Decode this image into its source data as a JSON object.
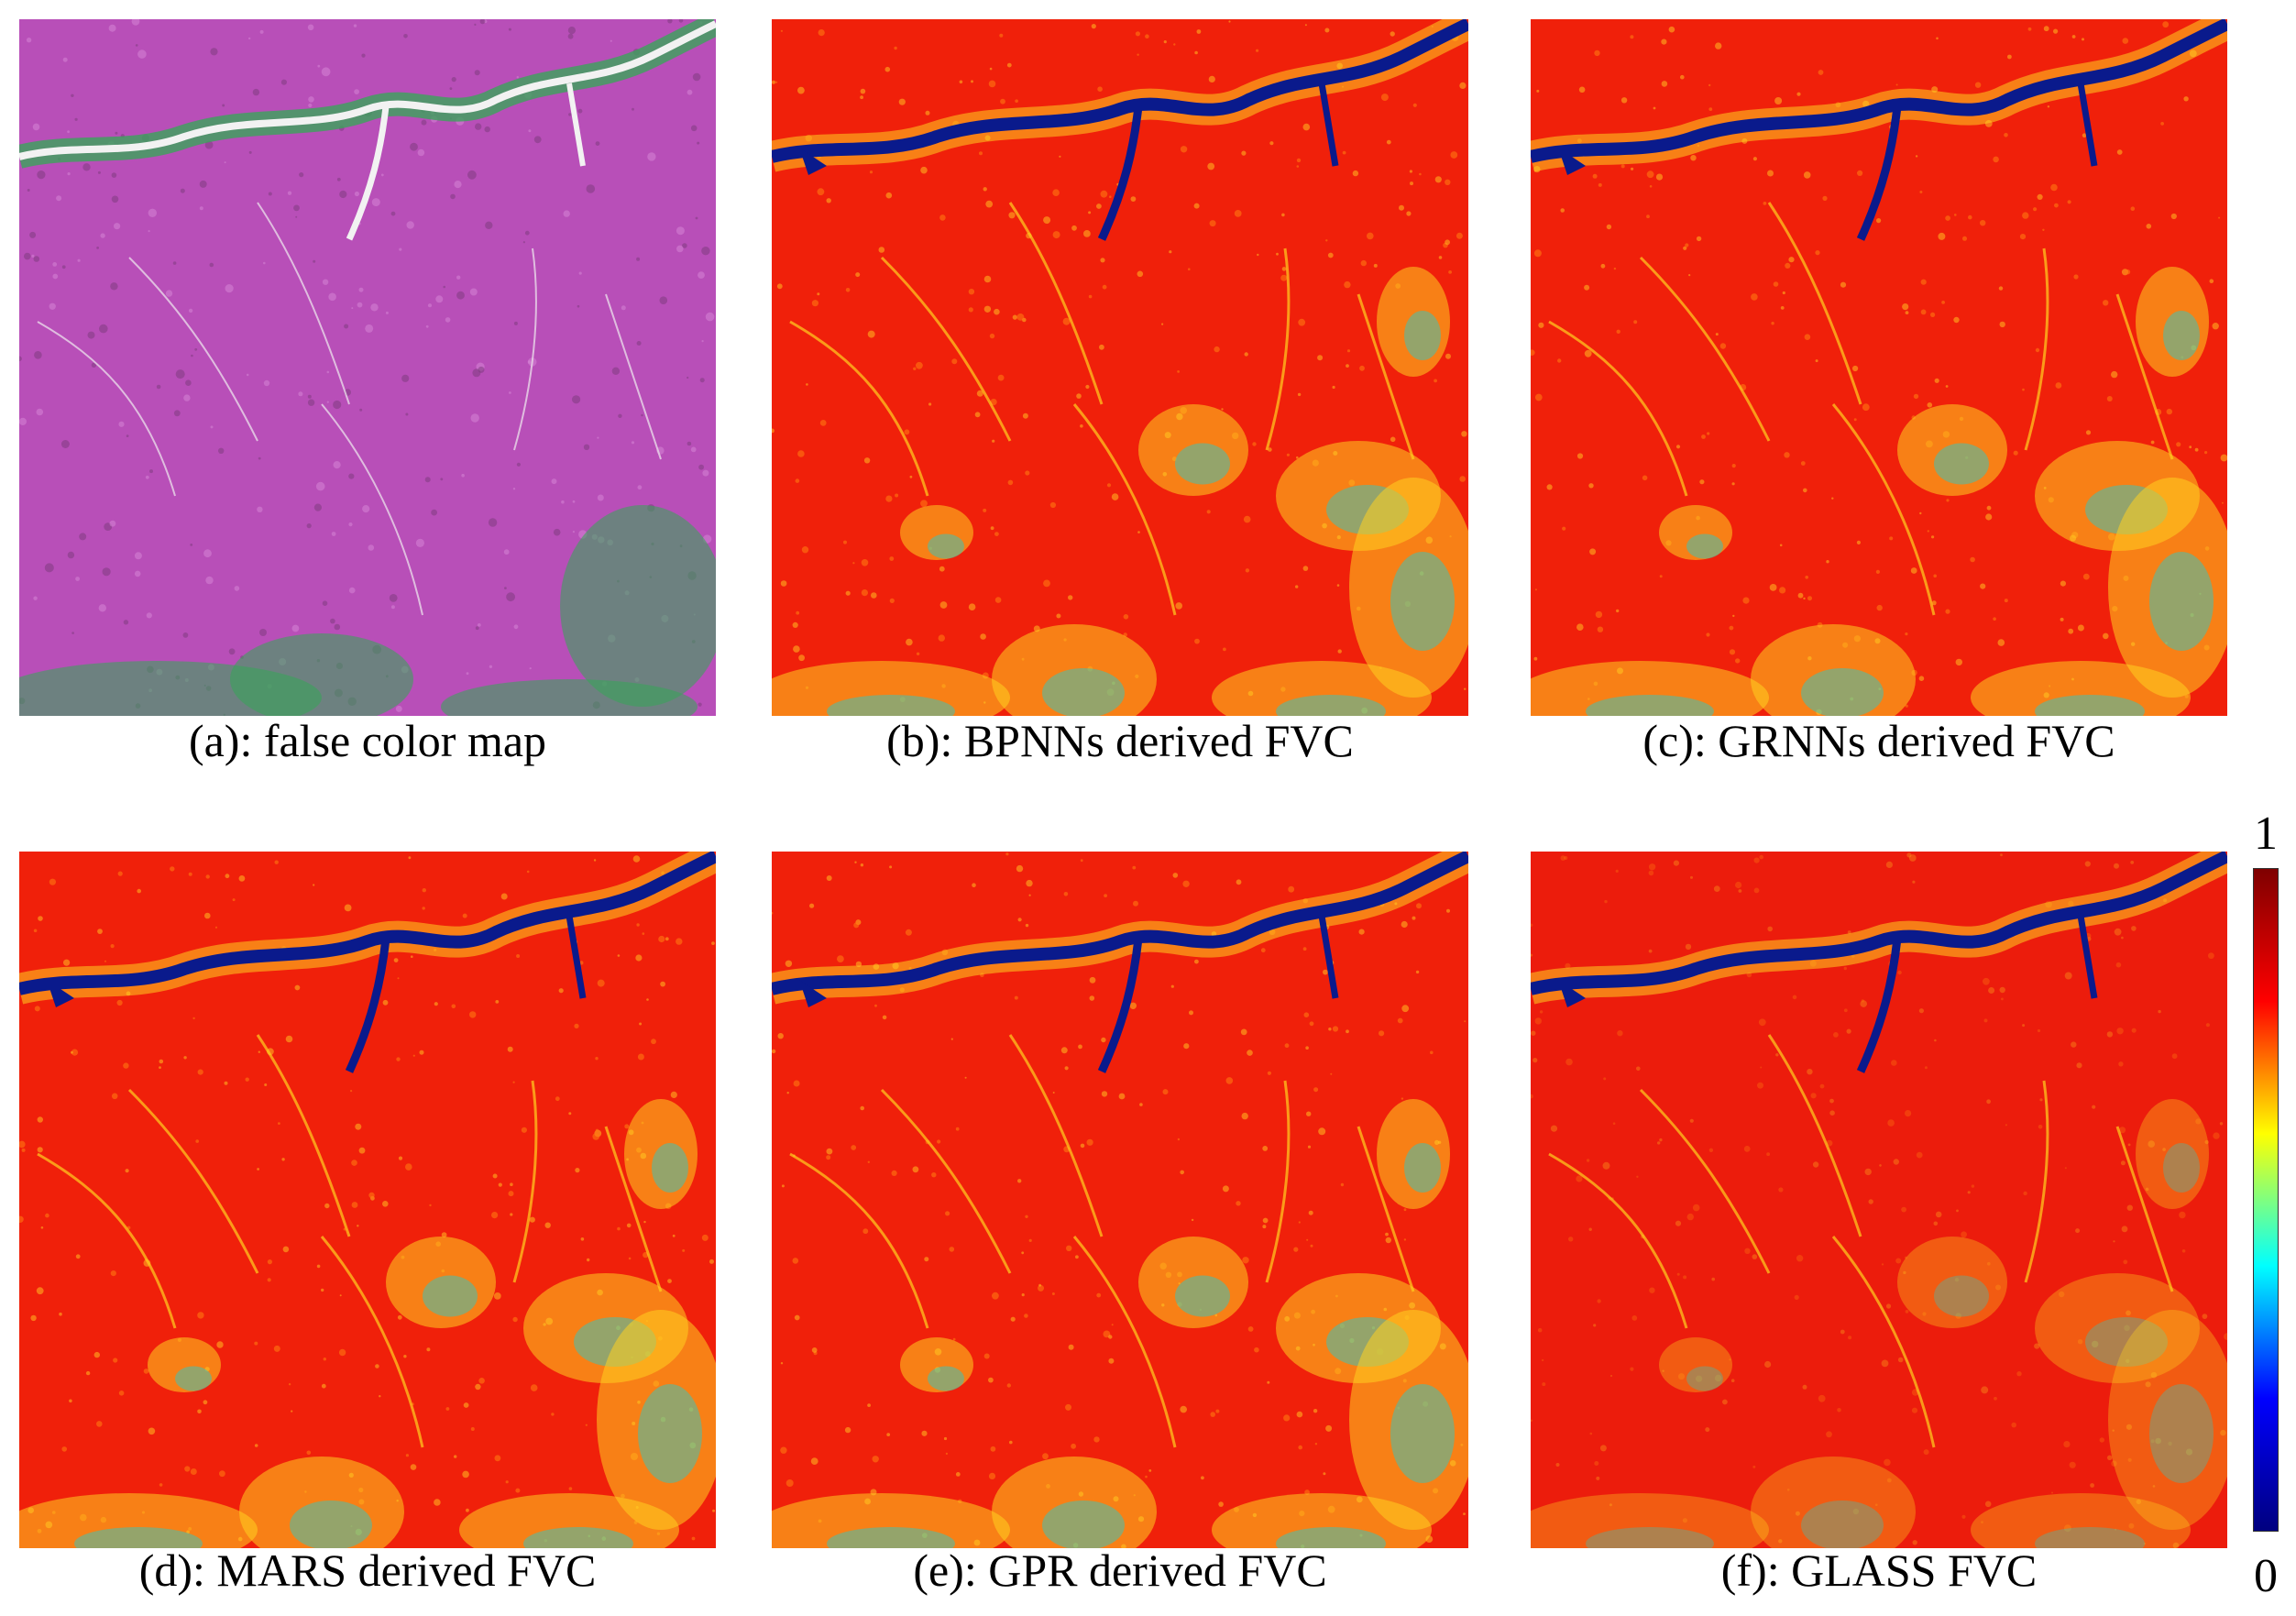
{
  "panels": [
    {
      "id": "a",
      "caption": "(a): false color map",
      "kind": "false-color"
    },
    {
      "id": "b",
      "caption": "(b): BPNNs derived FVC",
      "kind": "fvc"
    },
    {
      "id": "c",
      "caption": "(c): GRNNs derived FVC",
      "kind": "fvc"
    },
    {
      "id": "d",
      "caption": "(d): MARS derived FVC",
      "kind": "fvc"
    },
    {
      "id": "e",
      "caption": "(e): GPR derived FVC",
      "kind": "fvc"
    },
    {
      "id": "f",
      "caption": "(f): GLASS FVC",
      "kind": "fvc"
    }
  ],
  "colorbar": {
    "max_label": "1",
    "min_label": "0",
    "colormap": "jet",
    "colors": [
      "#00007f",
      "#0000ff",
      "#00ffff",
      "#ffff00",
      "#ff0000",
      "#7f0000"
    ]
  },
  "palette": {
    "false_color_base": "#b84fb8",
    "false_color_vegetation": "#3aa45a",
    "false_color_water": "#f2f2f2",
    "fvc_high": "#f0200a",
    "fvc_mid": "#ffd020",
    "fvc_low": "#30c8c0",
    "fvc_water": "#0a1a8c"
  }
}
